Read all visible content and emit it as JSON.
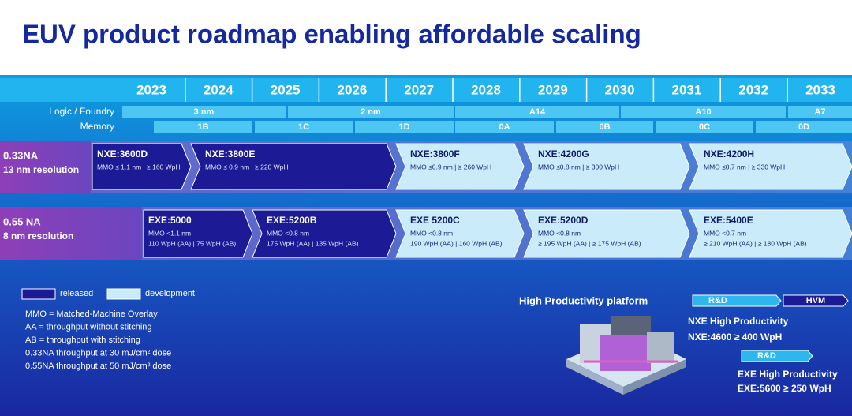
{
  "title": "EUV product roadmap enabling affordable scaling",
  "years": [
    "2023",
    "2024",
    "2025",
    "2026",
    "2027",
    "2028",
    "2029",
    "2030",
    "2031",
    "2032",
    "2033"
  ],
  "rows": [
    {
      "label": "Logic / Foundry",
      "segments": [
        "3 nm",
        "2 nm",
        "A14",
        "A10",
        "A7"
      ]
    },
    {
      "label": "Memory",
      "segments": [
        "1B",
        "1C",
        "1D",
        "0A",
        "0B",
        "0C",
        "0D"
      ]
    }
  ],
  "bands": [
    {
      "label": "0.33NA",
      "sublabel": "13 nm resolution",
      "products": [
        {
          "name": "NXE:3600D",
          "lines": [
            "MMO ≤ 1.1 nm | ≥ 160 WpH"
          ],
          "status": "released"
        },
        {
          "name": "NXE:3800E",
          "lines": [
            "MMO ≤ 0.9 nm | ≥ 220 WpH"
          ],
          "status": "released"
        },
        {
          "name": "NXE:3800F",
          "lines": [
            "MMO ≤0.9 nm | ≥ 260 WpH"
          ],
          "status": "development"
        },
        {
          "name": "NXE:4200G",
          "lines": [
            "MMO ≤0.8 nm | ≥ 300 WpH"
          ],
          "status": "development"
        },
        {
          "name": "NXE:4200H",
          "lines": [
            "MMO ≤0.7 nm | ≥ 330 WpH"
          ],
          "status": "development"
        }
      ]
    },
    {
      "label": "0.55 NA",
      "sublabel": "8 nm resolution",
      "products": [
        {
          "name": "EXE:5000",
          "lines": [
            "MMO <1.1 nm",
            "110 WpH (AA) | 75 WpH (AB)"
          ],
          "status": "released"
        },
        {
          "name": "EXE:5200B",
          "lines": [
            "MMO <0.8 nm",
            "175 WpH (AA) | 135 WpH (AB)"
          ],
          "status": "released"
        },
        {
          "name": "EXE 5200C",
          "lines": [
            "MMO <0.8 nm",
            "190 WpH (AA) | 160 WpH (AB)"
          ],
          "status": "development"
        },
        {
          "name": "EXE:5200D",
          "lines": [
            "MMO <0.8 nm",
            "≥ 195 WpH (AA) | ≥ 175 WpH (AB)"
          ],
          "status": "development"
        },
        {
          "name": "EXE:5400E",
          "lines": [
            "MMO <0.7 nm",
            "≥ 210 WpH (AA) | ≥ 180 WpH (AB)"
          ],
          "status": "development"
        }
      ]
    }
  ],
  "legend": [
    "released",
    "development"
  ],
  "notes": [
    "MMO = Matched-Machine Overlay",
    "AA = throughput without stitching",
    "AB = throughput with stitching",
    "0.33NA throughput at 30 mJ/cm² dose",
    "0.55NA throughput at 50 mJ/cm² dose"
  ],
  "platform": {
    "title": "High Productivity platform",
    "phases": [
      "R&D",
      "HVM",
      "R&D"
    ],
    "nxe": {
      "name": "NXE High Productivity",
      "spec": "NXE:4600  ≥ 400 WpH"
    },
    "exe": {
      "name": "EXE  High Productivity",
      "spec": "EXE:5600 ≥ 250 WpH"
    }
  }
}
